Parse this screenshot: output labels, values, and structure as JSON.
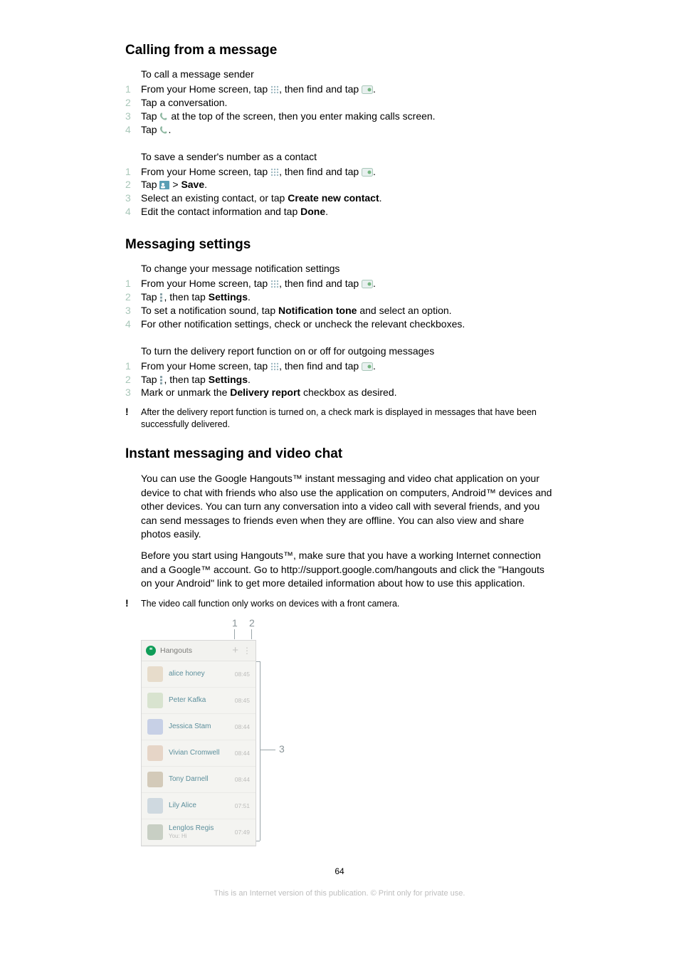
{
  "section1": {
    "title": "Calling from a message",
    "sub1": "To call a message sender",
    "steps1": [
      "From your Home screen, tap ",
      "Tap a conversation.",
      "Tap ",
      "Tap "
    ],
    "s1_tail": ", then find and tap ",
    "s3_tail": " at the top of the screen, then you enter making calls screen.",
    "sub2": "To save a sender's number as a contact",
    "steps2_1a": "From your Home screen, tap ",
    "steps2_1b": ", then find and tap ",
    "steps2_2a": "Tap ",
    "steps2_2b": " > ",
    "save": "Save",
    "steps2_3a": "Select an existing contact, or tap ",
    "create": "Create new contact",
    "steps2_4a": "Edit the contact information and tap ",
    "done": "Done"
  },
  "section2": {
    "title": "Messaging settings",
    "sub1": "To change your message notification settings",
    "s1a": "From your Home screen, tap ",
    "s1b": ", then find and tap ",
    "s2a": "Tap ",
    "s2b": ", then tap ",
    "settings": "Settings",
    "s3a": "To set a notification sound, tap ",
    "noti": "Notification tone",
    "s3b": " and select an option.",
    "s4": "For other notification settings, check or uncheck the relevant checkboxes.",
    "sub2": "To turn the delivery report function on or off for outgoing messages",
    "d1a": "From your Home screen, tap ",
    "d1b": ", then find and tap ",
    "d2a": "Tap ",
    "d2b": ", then tap ",
    "d3a": "Mark or unmark the ",
    "delivery": "Delivery report",
    "d3b": " checkbox as desired.",
    "note": "After the delivery report function is turned on, a check mark is displayed in messages that have been successfully delivered."
  },
  "section3": {
    "title": "Instant messaging and video chat",
    "p1": "You can use the Google Hangouts™ instant messaging and video chat application on your device to chat with friends who also use the application on computers, Android™ devices and other devices. You can turn any conversation into a video call with several friends, and you can send messages to friends even when they are offline. You can also view and share photos easily.",
    "p2": "Before you start using Hangouts™, make sure that you have a working Internet connection and a Google™ account. Go to http://support.google.com/hangouts and click the \"Hangouts on your Android\" link to get more detailed information about how to use this application.",
    "note": "The video call function only works on devices with a front camera."
  },
  "hangouts": {
    "app_title": "Hangouts",
    "callouts": {
      "c1": "1",
      "c2": "2",
      "c3": "3"
    },
    "rows": [
      {
        "name": "alice honey",
        "time": "08:45",
        "sub": "",
        "av": "#e7dccb"
      },
      {
        "name": "Peter Kafka",
        "time": "08:45",
        "sub": "",
        "av": "#d8e3cf"
      },
      {
        "name": "Jessica Stam",
        "time": "08:44",
        "sub": "",
        "av": "#c7d0e6"
      },
      {
        "name": "Vivian Cromwell",
        "time": "08:44",
        "sub": "",
        "av": "#e6d5c7"
      },
      {
        "name": "Tony Darnell",
        "time": "08:44",
        "sub": "",
        "av": "#d3cab9"
      },
      {
        "name": "Lily Alice",
        "time": "07:51",
        "sub": "",
        "av": "#cfd9e0"
      },
      {
        "name": "Lenglos Regis",
        "time": "07:49",
        "sub": "You: Hi",
        "av": "#c8cfc4"
      }
    ]
  },
  "footer": {
    "page": "64",
    "disclaimer": "This is an Internet version of this publication. © Print only for private use."
  },
  "period": "."
}
